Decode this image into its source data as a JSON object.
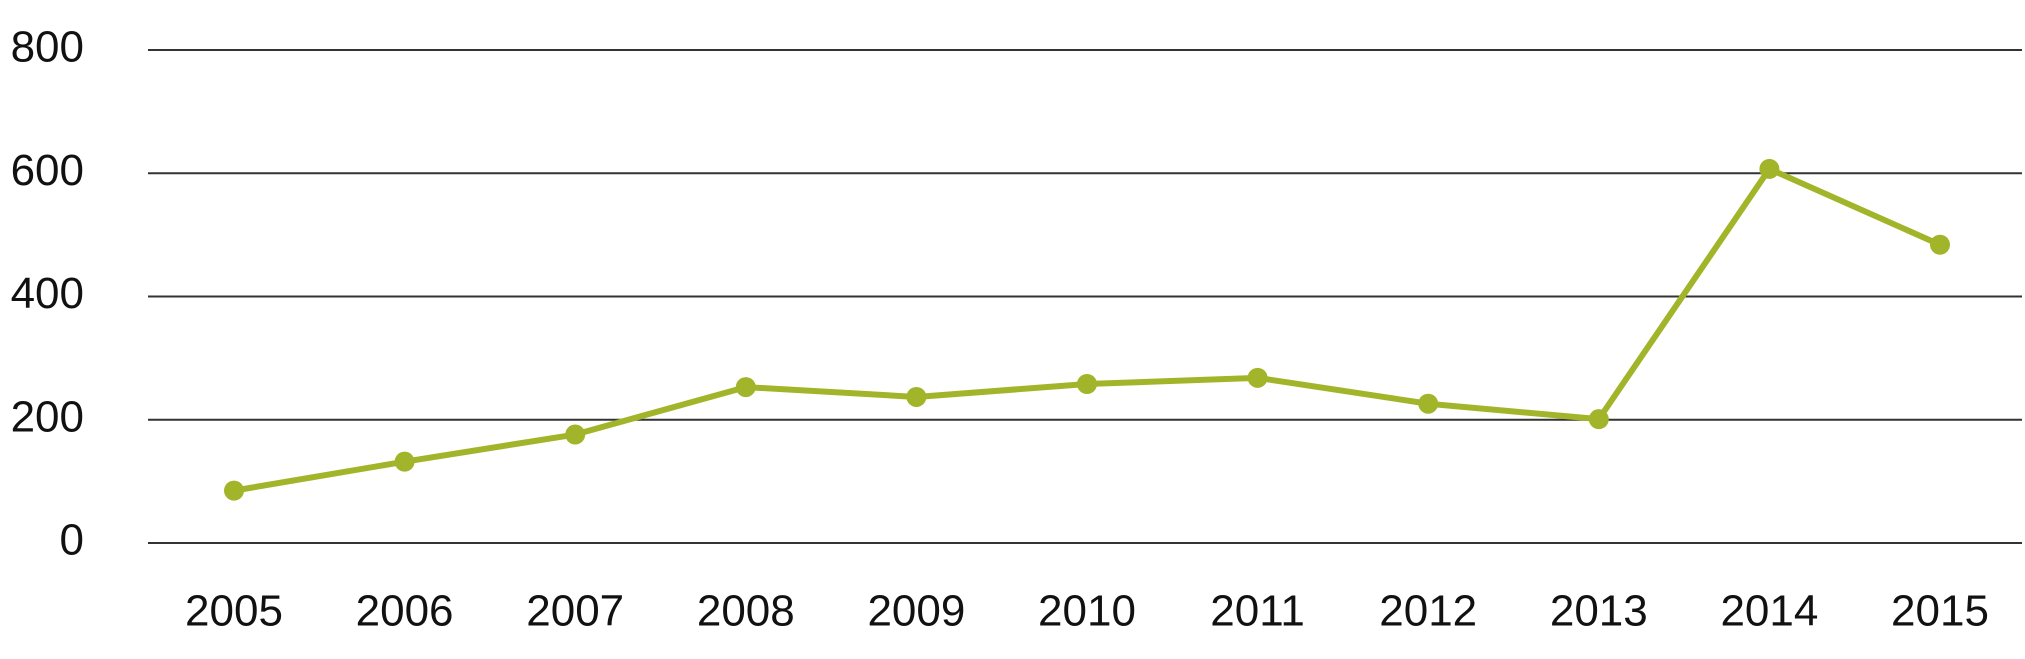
{
  "chart_data": {
    "type": "line",
    "categories": [
      "2005",
      "2006",
      "2007",
      "2008",
      "2009",
      "2010",
      "2011",
      "2012",
      "2013",
      "2014",
      "2015"
    ],
    "series": [
      {
        "color": "#a2b52a",
        "values": [
          85,
          132,
          176,
          253,
          237,
          258,
          268,
          226,
          201,
          607,
          484
        ]
      }
    ],
    "ylim": [
      0,
      800
    ],
    "yticks": [
      0,
      200,
      400,
      600,
      800
    ],
    "grid": true
  }
}
